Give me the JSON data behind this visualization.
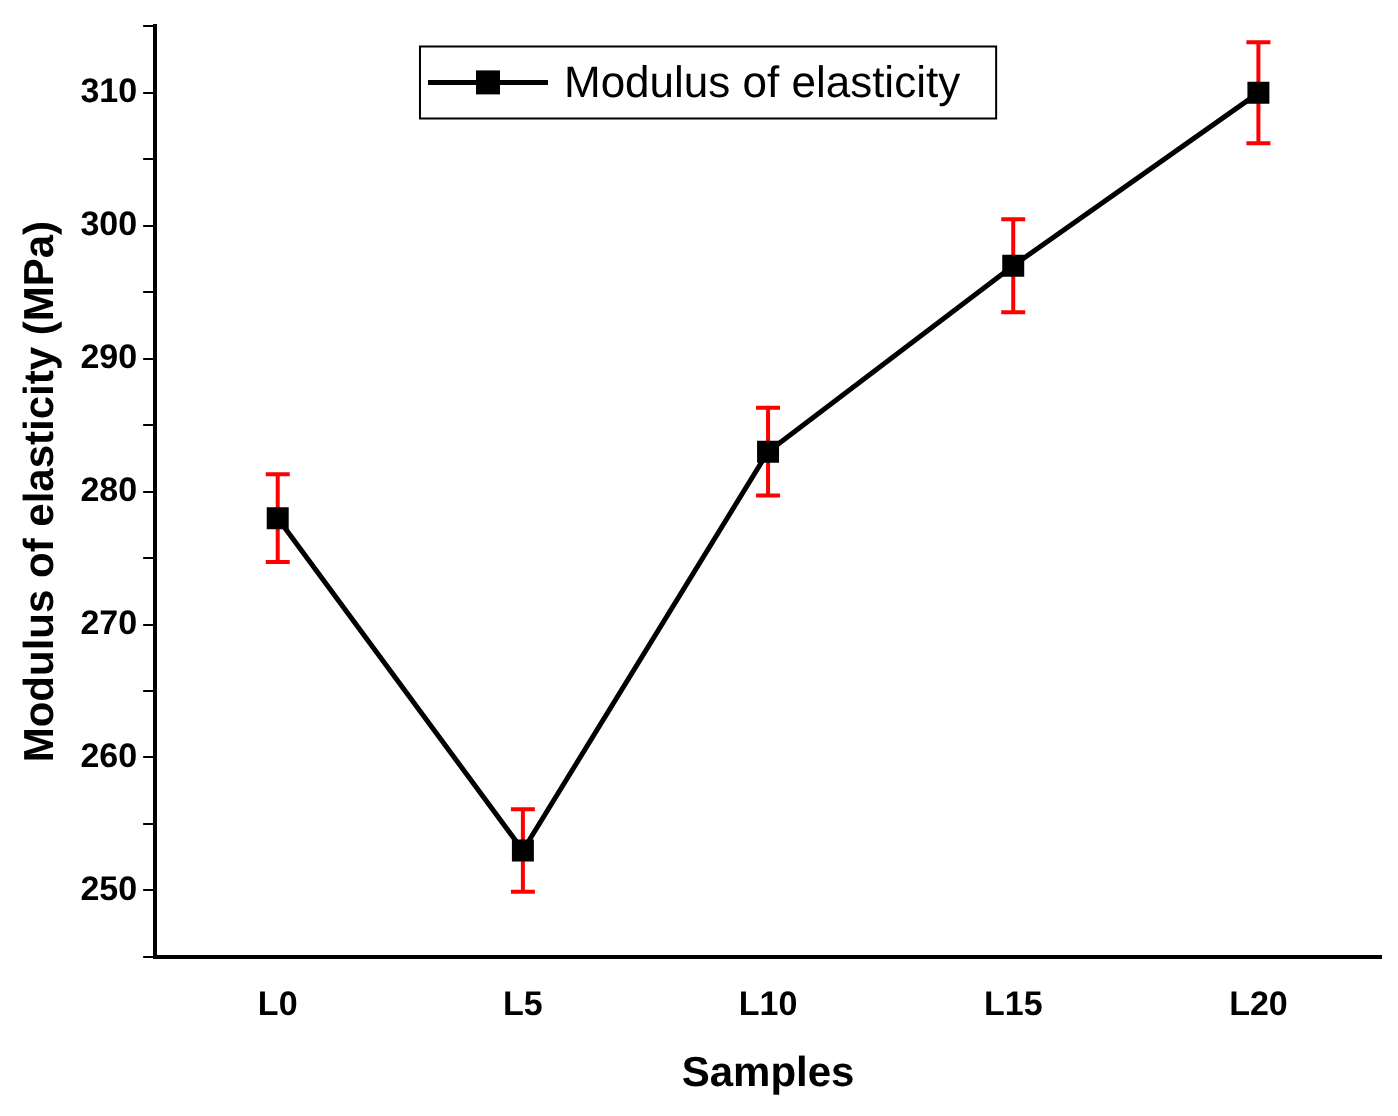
{
  "chart_data": {
    "type": "line",
    "xlabel": "Samples",
    "ylabel": "Modulus of elasticity (MPa)",
    "categories": [
      "L0",
      "L5",
      "L10",
      "L15",
      "L20"
    ],
    "series": [
      {
        "name": "Modulus of elasticity",
        "color": "#000000",
        "values": [
          278,
          253,
          283,
          297,
          310
        ],
        "errors": [
          3.3,
          3.1,
          3.3,
          3.5,
          3.8
        ]
      }
    ],
    "ylim": [
      245,
      315
    ],
    "yticks": [
      {
        "value": 245,
        "label": null
      },
      250,
      {
        "value": 255,
        "label": null
      },
      260,
      {
        "value": 265,
        "label": null
      },
      270,
      {
        "value": 275,
        "label": null
      },
      280,
      {
        "value": 285,
        "label": null
      },
      290,
      {
        "value": 295,
        "label": null
      },
      300,
      {
        "value": 305,
        "label": null
      },
      310,
      {
        "value": 315,
        "label": null
      }
    ],
    "grid": false,
    "legend": "top",
    "marker": "square",
    "line_style": "solid"
  }
}
